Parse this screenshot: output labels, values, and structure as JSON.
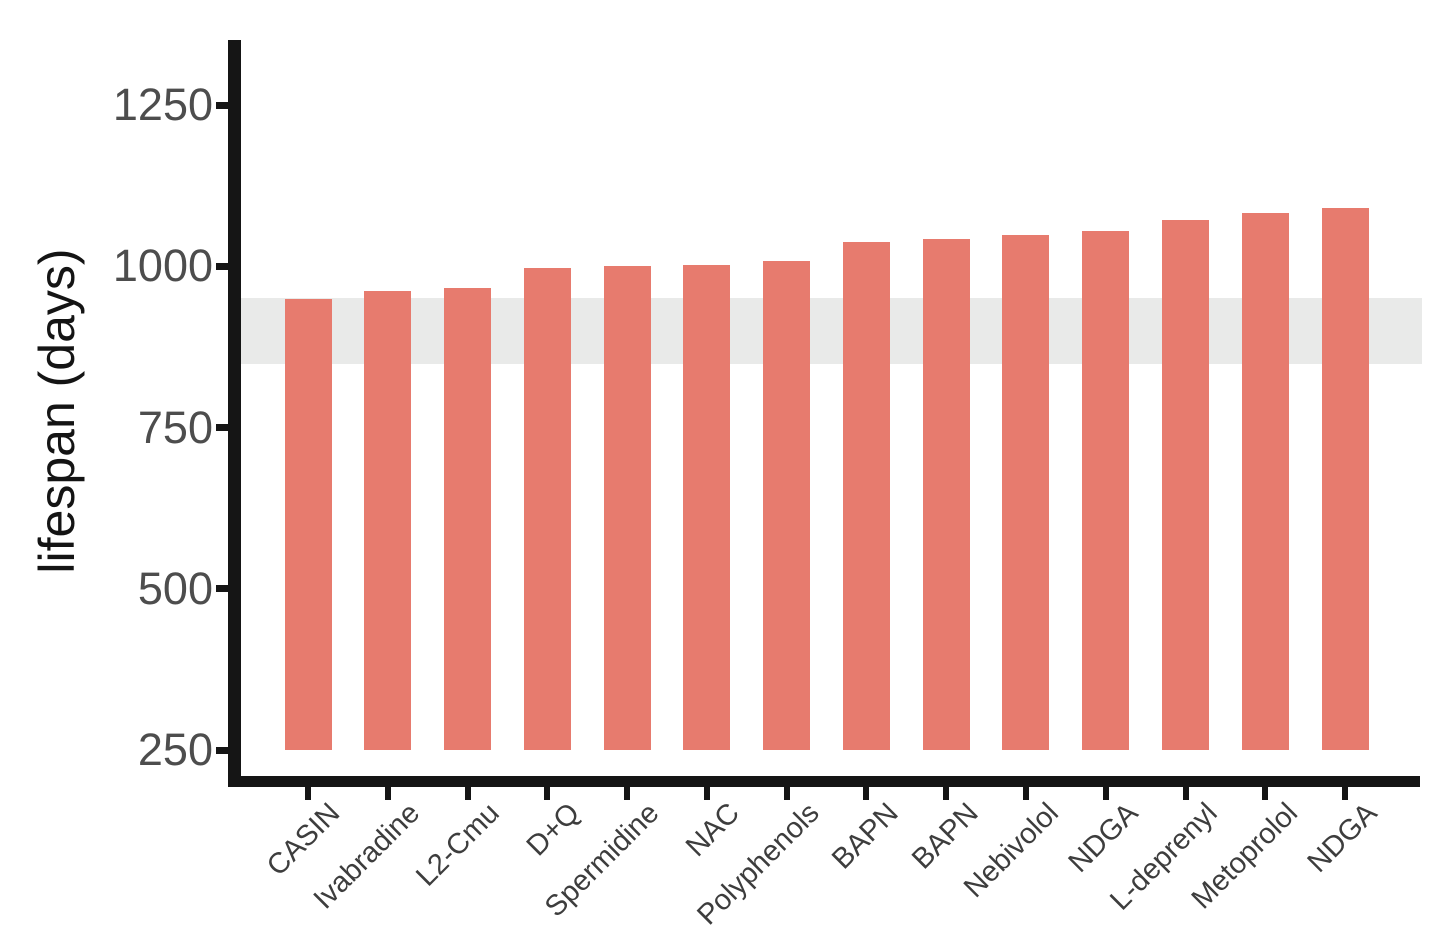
{
  "chart_data": {
    "type": "bar",
    "title": "",
    "xlabel": "",
    "ylabel": "lifespan (days)",
    "categories": [
      "CASIN",
      "Ivabradine",
      "L2-Cmu",
      "D+Q",
      "Spermidine",
      "NAC",
      "Polyphenols",
      "BAPN",
      "BAPN",
      "Nebivolol",
      "NDGA",
      "L-deprenyl",
      "Metoprolol",
      "NDGA"
    ],
    "values": [
      950,
      962,
      966,
      997,
      1000,
      1002,
      1008,
      1038,
      1042,
      1048,
      1055,
      1072,
      1082,
      1090
    ],
    "bars_baseline": 250,
    "y_ticks": [
      250,
      500,
      750,
      1000,
      1250
    ],
    "ylim": [
      250,
      1350
    ],
    "grid": false,
    "legend": false,
    "reference_band": {
      "low": 848,
      "high": 951
    },
    "colors": {
      "bar": "#e77b6e",
      "band": "#e9eae9",
      "axis": "#151515",
      "tick_label": "#4d4d4d",
      "category_label": "#3d3d3d",
      "axis_title": "#141414"
    }
  }
}
